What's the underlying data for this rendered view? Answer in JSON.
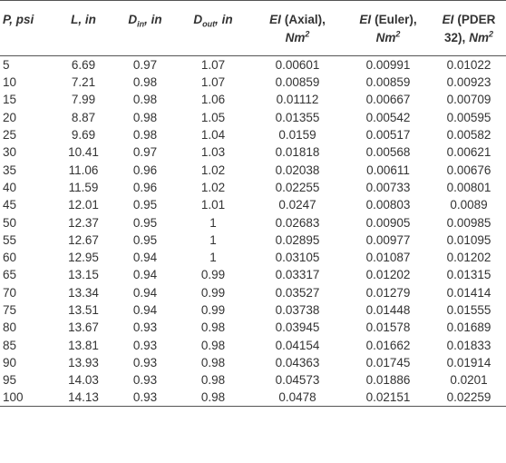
{
  "headers": {
    "p": {
      "sym": "P",
      "unit": ", psi"
    },
    "l": {
      "sym": "L",
      "unit": ", in"
    },
    "din": {
      "sym": "D",
      "sub": "in",
      "unit": ", in"
    },
    "dout": {
      "sym": "D",
      "sub": "out",
      "unit": ", in"
    },
    "ei_axial": {
      "sym": "EI",
      "label": "(Axial),",
      "unit": "Nm",
      "sup": "2"
    },
    "ei_euler": {
      "sym": "EI",
      "label": "(Euler),",
      "unit": "Nm",
      "sup": "2"
    },
    "ei_pder": {
      "sym": "EI",
      "label": "(PDER",
      "label2": "32),",
      "unit": "Nm",
      "sup": "2"
    }
  },
  "rows": [
    [
      "5",
      "6.69",
      "0.97",
      "1.07",
      "0.00601",
      "0.00991",
      "0.01022"
    ],
    [
      "10",
      "7.21",
      "0.98",
      "1.07",
      "0.00859",
      "0.00859",
      "0.00923"
    ],
    [
      "15",
      "7.99",
      "0.98",
      "1.06",
      "0.01112",
      "0.00667",
      "0.00709"
    ],
    [
      "20",
      "8.87",
      "0.98",
      "1.05",
      "0.01355",
      "0.00542",
      "0.00595"
    ],
    [
      "25",
      "9.69",
      "0.98",
      "1.04",
      "0.0159",
      "0.00517",
      "0.00582"
    ],
    [
      "30",
      "10.41",
      "0.97",
      "1.03",
      "0.01818",
      "0.00568",
      "0.00621"
    ],
    [
      "35",
      "11.06",
      "0.96",
      "1.02",
      "0.02038",
      "0.00611",
      "0.00676"
    ],
    [
      "40",
      "11.59",
      "0.96",
      "1.02",
      "0.02255",
      "0.00733",
      "0.00801"
    ],
    [
      "45",
      "12.01",
      "0.95",
      "1.01",
      "0.0247",
      "0.00803",
      "0.0089"
    ],
    [
      "50",
      "12.37",
      "0.95",
      "1",
      "0.02683",
      "0.00905",
      "0.00985"
    ],
    [
      "55",
      "12.67",
      "0.95",
      "1",
      "0.02895",
      "0.00977",
      "0.01095"
    ],
    [
      "60",
      "12.95",
      "0.94",
      "1",
      "0.03105",
      "0.01087",
      "0.01202"
    ],
    [
      "65",
      "13.15",
      "0.94",
      "0.99",
      "0.03317",
      "0.01202",
      "0.01315"
    ],
    [
      "70",
      "13.34",
      "0.94",
      "0.99",
      "0.03527",
      "0.01279",
      "0.01414"
    ],
    [
      "75",
      "13.51",
      "0.94",
      "0.99",
      "0.03738",
      "0.01448",
      "0.01555"
    ],
    [
      "80",
      "13.67",
      "0.93",
      "0.98",
      "0.03945",
      "0.01578",
      "0.01689"
    ],
    [
      "85",
      "13.81",
      "0.93",
      "0.98",
      "0.04154",
      "0.01662",
      "0.01833"
    ],
    [
      "90",
      "13.93",
      "0.93",
      "0.98",
      "0.04363",
      "0.01745",
      "0.01914"
    ],
    [
      "95",
      "14.03",
      "0.93",
      "0.98",
      "0.04573",
      "0.01886",
      "0.0201"
    ],
    [
      "100",
      "14.13",
      "0.93",
      "0.98",
      "0.0478",
      "0.02151",
      "0.02259"
    ]
  ]
}
